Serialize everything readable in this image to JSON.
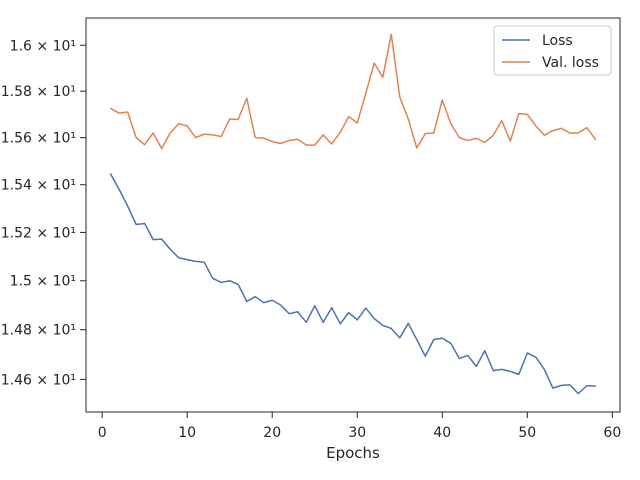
{
  "chart_data": {
    "type": "line",
    "title": "",
    "xlabel": "Epochs",
    "ylabel": "",
    "xlim": [
      -1.9,
      60.9
    ],
    "ylim": [
      14.47,
      16.12
    ],
    "y_scale": "log",
    "grid": false,
    "legend_position": "top-right",
    "xticks": [
      0,
      10,
      20,
      30,
      40,
      50,
      60
    ],
    "xtick_labels": [
      "0",
      "10",
      "20",
      "30",
      "40",
      "50",
      "60"
    ],
    "yticks": [
      14.6,
      14.8,
      15.0,
      15.2,
      15.4,
      15.6,
      15.8,
      16.0
    ],
    "ytick_labels": [
      "1.46 × 10¹",
      "1.48 × 10¹",
      "1.5 × 10¹",
      "1.52 × 10¹",
      "1.54 × 10¹",
      "1.56 × 10¹",
      "1.58 × 10¹",
      "1.6 × 10¹"
    ],
    "x": [
      1,
      2,
      3,
      4,
      5,
      6,
      7,
      8,
      9,
      10,
      11,
      12,
      13,
      14,
      15,
      16,
      17,
      18,
      19,
      20,
      21,
      22,
      23,
      24,
      25,
      26,
      27,
      28,
      29,
      30,
      31,
      32,
      33,
      34,
      35,
      36,
      37,
      38,
      39,
      40,
      41,
      42,
      43,
      44,
      45,
      46,
      47,
      48,
      49,
      50,
      51,
      52,
      53,
      54,
      55,
      56,
      57,
      58
    ],
    "series": [
      {
        "name": "Loss",
        "color": "#4c72b0",
        "values": [
          15.445,
          15.38,
          15.31,
          15.233,
          15.237,
          15.17,
          15.172,
          15.13,
          15.095,
          15.087,
          15.08,
          15.077,
          15.01,
          14.993,
          15.0,
          14.985,
          14.915,
          14.935,
          14.91,
          14.92,
          14.9,
          14.865,
          14.873,
          14.83,
          14.897,
          14.83,
          14.89,
          14.824,
          14.87,
          14.84,
          14.888,
          14.845,
          14.818,
          14.805,
          14.767,
          14.826,
          14.76,
          14.693,
          14.76,
          14.766,
          14.745,
          14.684,
          14.696,
          14.652,
          14.715,
          14.635,
          14.64,
          14.632,
          14.62,
          14.706,
          14.689,
          14.64,
          14.565,
          14.576,
          14.578,
          14.543,
          14.575,
          14.573
        ]
      },
      {
        "name": "Val. loss",
        "color": "#dd8452",
        "values": [
          15.725,
          15.705,
          15.71,
          15.6,
          15.57,
          15.62,
          15.553,
          15.62,
          15.66,
          15.65,
          15.6,
          15.615,
          15.612,
          15.605,
          15.68,
          15.678,
          15.77,
          15.6,
          15.598,
          15.583,
          15.575,
          15.588,
          15.593,
          15.568,
          15.568,
          15.612,
          15.573,
          15.623,
          15.69,
          15.663,
          15.79,
          15.922,
          15.86,
          16.048,
          15.775,
          15.68,
          15.556,
          15.617,
          15.62,
          15.762,
          15.66,
          15.6,
          15.588,
          15.597,
          15.58,
          15.61,
          15.673,
          15.585,
          15.703,
          15.7,
          15.65,
          15.61,
          15.63,
          15.64,
          15.62,
          15.62,
          15.643,
          15.593
        ]
      }
    ]
  }
}
